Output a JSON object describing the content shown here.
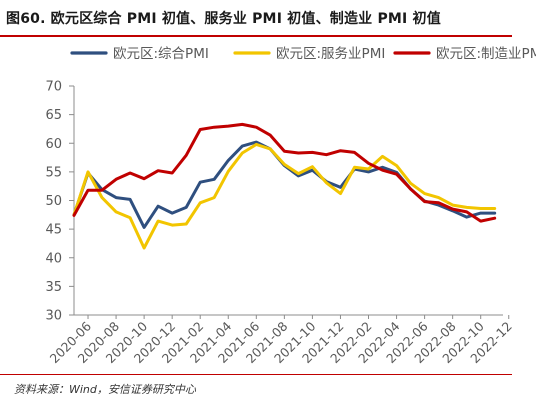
{
  "chart_data": {
    "type": "line",
    "title": "图60. 欧元区综合 PMI 初值、服务业 PMI 初值、制造业 PMI 初值",
    "source": "资料来源：Wind，安信证券研究中心",
    "ylim": [
      30,
      70
    ],
    "yticks": [
      30,
      35,
      40,
      45,
      50,
      55,
      60,
      65,
      70
    ],
    "x": [
      "2020-05",
      "2020-06",
      "2020-07",
      "2020-08",
      "2020-09",
      "2020-10",
      "2020-11",
      "2020-12",
      "2021-01",
      "2021-02",
      "2021-03",
      "2021-04",
      "2021-05",
      "2021-06",
      "2021-07",
      "2021-08",
      "2021-09",
      "2021-10",
      "2021-11",
      "2021-12",
      "2022-01",
      "2022-02",
      "2022-03",
      "2022-04",
      "2022-05",
      "2022-06",
      "2022-07",
      "2022-08",
      "2022-09",
      "2022-10",
      "2022-11"
    ],
    "xticks": [
      "2020-06",
      "2020-08",
      "2020-10",
      "2020-12",
      "2021-02",
      "2021-04",
      "2021-06",
      "2021-08",
      "2021-10",
      "2021-12",
      "2022-02",
      "2022-04",
      "2022-06",
      "2022-08",
      "2022-10",
      "2022-12"
    ],
    "legend_position": "top",
    "series": [
      {
        "name": "欧元区:综合PMI",
        "color": "#2f4f7f",
        "values": [
          47.5,
          54.8,
          51.9,
          50.5,
          50.2,
          45.3,
          49.0,
          47.8,
          48.8,
          53.2,
          53.7,
          57.0,
          59.5,
          60.2,
          59.0,
          56.1,
          54.3,
          55.3,
          53.3,
          52.3,
          55.5,
          55.0,
          55.8,
          54.9,
          52.0,
          49.9,
          49.2,
          48.2,
          47.1,
          47.8,
          47.8
        ]
      },
      {
        "name": "欧元区:服务业PMI",
        "color": "#f2c500",
        "values": [
          47.5,
          55.0,
          50.5,
          48.0,
          47.0,
          41.7,
          46.4,
          45.7,
          45.9,
          49.6,
          50.5,
          55.1,
          58.3,
          59.8,
          59.0,
          56.3,
          54.7,
          55.9,
          53.1,
          51.2,
          55.8,
          55.5,
          57.7,
          56.1,
          53.0,
          51.2,
          50.5,
          49.2,
          48.8,
          48.6,
          48.6
        ]
      },
      {
        "name": "欧元区:制造业PMI",
        "color": "#c00000",
        "values": [
          47.4,
          51.8,
          51.8,
          53.7,
          54.8,
          53.8,
          55.2,
          54.8,
          57.9,
          62.4,
          62.8,
          63.0,
          63.3,
          62.8,
          61.4,
          58.6,
          58.3,
          58.4,
          58.0,
          58.7,
          58.4,
          56.5,
          55.3,
          54.6,
          52.0,
          49.8,
          49.6,
          48.5,
          48.0,
          46.4,
          46.9
        ]
      }
    ]
  }
}
